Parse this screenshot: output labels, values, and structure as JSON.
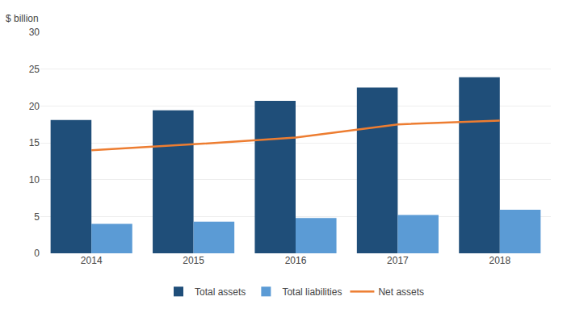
{
  "chart_data": {
    "type": "bar",
    "ylabel": "$ billion",
    "categories": [
      "2014",
      "2015",
      "2016",
      "2017",
      "2018"
    ],
    "series": [
      {
        "name": "Total assets",
        "type": "bar",
        "color": "#1F4E79",
        "values": [
          18.1,
          19.4,
          20.7,
          22.5,
          23.9
        ]
      },
      {
        "name": "Total liabilities",
        "type": "bar",
        "color": "#5B9BD5",
        "values": [
          4.0,
          4.3,
          4.8,
          5.2,
          5.9
        ]
      },
      {
        "name": "Net assets",
        "type": "line",
        "color": "#ED7D31",
        "values": [
          14.0,
          14.8,
          15.7,
          17.5,
          18.0
        ]
      }
    ],
    "ylim": [
      0,
      30
    ],
    "yticks": [
      0,
      5,
      10,
      15,
      20,
      25,
      30
    ],
    "grid": true,
    "legend": "bottom"
  }
}
